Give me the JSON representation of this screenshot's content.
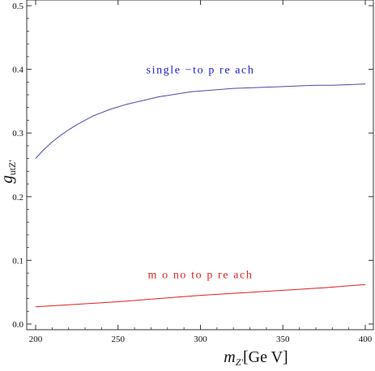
{
  "chart_data": {
    "type": "line",
    "xlabel_main": "m",
    "xlabel_sub": "Z'",
    "xlabel_unit": "[Ge V]",
    "ylabel_main": "g",
    "ylabel_sub": "utZ'",
    "xlim": [
      200,
      400
    ],
    "ylim": [
      0.0,
      0.5
    ],
    "xticks": [
      200,
      250,
      300,
      350,
      400
    ],
    "yticks": [
      0.0,
      0.1,
      0.2,
      0.3,
      0.4,
      0.5
    ],
    "grid": false,
    "series": [
      {
        "name": "single −to p re ach",
        "color": "#4b4bab",
        "x": [
          200,
          205,
          210,
          215,
          220,
          225,
          230,
          235,
          240,
          245,
          250,
          255,
          260,
          265,
          270,
          275,
          280,
          285,
          290,
          295,
          300,
          310,
          320,
          330,
          340,
          350,
          360,
          370,
          380,
          390,
          400
        ],
        "y": [
          0.26,
          0.274,
          0.286,
          0.296,
          0.305,
          0.313,
          0.32,
          0.327,
          0.332,
          0.337,
          0.341,
          0.345,
          0.348,
          0.351,
          0.354,
          0.357,
          0.359,
          0.361,
          0.363,
          0.365,
          0.366,
          0.368,
          0.37,
          0.371,
          0.372,
          0.373,
          0.374,
          0.375,
          0.375,
          0.376,
          0.377
        ]
      },
      {
        "name": "m o no to p re ach",
        "color": "#e02020",
        "x": [
          200,
          225,
          250,
          275,
          300,
          325,
          350,
          375,
          400
        ],
        "y": [
          0.027,
          0.031,
          0.035,
          0.04,
          0.045,
          0.049,
          0.053,
          0.057,
          0.062
        ]
      }
    ],
    "annotations": [
      {
        "text": "single −to p re ach",
        "x": 300,
        "y": 0.394,
        "color": "#1a1acc"
      },
      {
        "text": "m o no to p re ach",
        "x": 300,
        "y": 0.072,
        "color": "#e02020"
      }
    ]
  }
}
